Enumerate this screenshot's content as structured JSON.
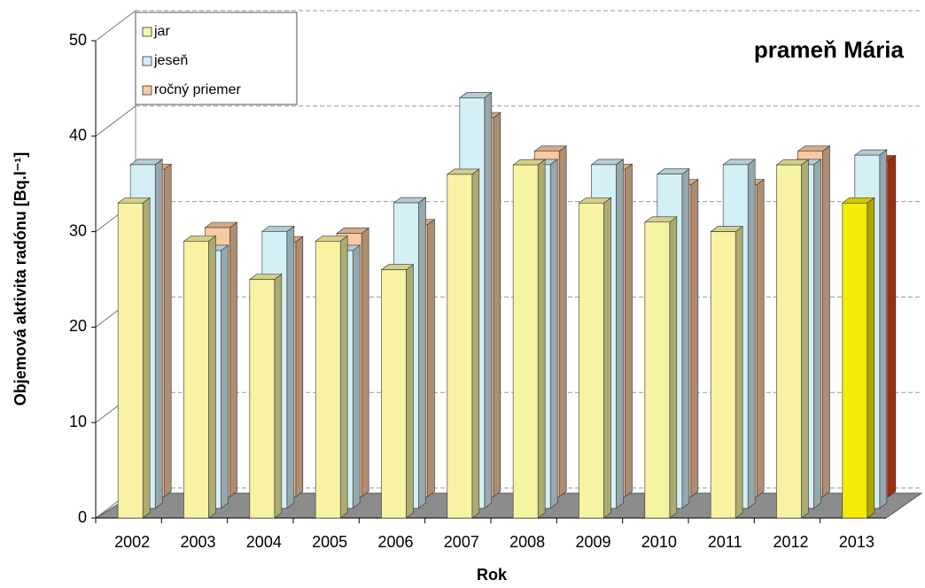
{
  "chart_data": {
    "type": "bar3d",
    "title": "prameň Mária",
    "x_label": "Rok",
    "y_label": "Objemová aktivita radónu [Bq.l⁻¹]",
    "categories": [
      "2002",
      "2003",
      "2004",
      "2005",
      "2006",
      "2007",
      "2008",
      "2009",
      "2010",
      "2011",
      "2012",
      "2013"
    ],
    "series": [
      {
        "name": "jar",
        "color": "#f7f3a3",
        "highlight_color": "#f5ea0a",
        "values": [
          33,
          29,
          25,
          29,
          26,
          36,
          37,
          33,
          31,
          30,
          37,
          33
        ]
      },
      {
        "name": "jeseň",
        "color": "#d4f0f7",
        "highlight_color": "#d4f0f7",
        "values": [
          36,
          27,
          29,
          27,
          32,
          43,
          36,
          36,
          35,
          36,
          36,
          37
        ]
      },
      {
        "name": "ročný priemer",
        "color": "#f9c9a2",
        "highlight_color": "#e2401a",
        "values": [
          34.3,
          28.2,
          26.7,
          27.6,
          28.5,
          39.7,
          36.2,
          34.3,
          32.7,
          32.7,
          36.2,
          35.2
        ]
      }
    ],
    "highlight_category": "2013",
    "ylim": [
      0,
      50
    ],
    "yticks": [
      0,
      10,
      20,
      30,
      40,
      50
    ],
    "grid": true
  }
}
